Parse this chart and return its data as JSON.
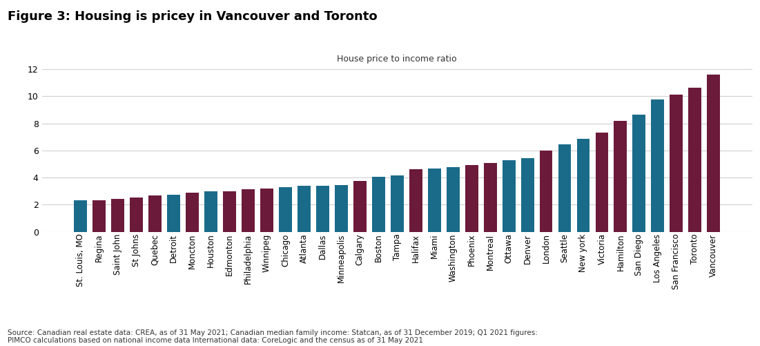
{
  "title": "Figure 3: Housing is pricey in Vancouver and Toronto",
  "subtitle": "House price to income ratio",
  "footnote": "Source: Canadian real estate data: CREA, as of 31 May 2021; Canadian median family income: Statcan, as of 31 December 2019; Q1 2021 figures:\nPIMCO calculations based on national income data International data: CoreLogic and the census as of 31 May 2021",
  "categories": [
    "St. Louis, MO",
    "Regina",
    "Saint John",
    "St Johns",
    "Quebec",
    "Detroit",
    "Moncton",
    "Houston",
    "Edmonton",
    "Philadelphia",
    "Winnipeg",
    "Chicago",
    "Atlanta",
    "Dallas",
    "Minneapolis",
    "Calgary",
    "Boston",
    "Tampa",
    "Halifax",
    "Miami",
    "Washington",
    "Phoenix",
    "Montreal",
    "Ottawa",
    "Denver",
    "London",
    "Seattle",
    "New york",
    "Victoria",
    "Hamilton",
    "San Diego",
    "Los Angeles",
    "San Francisco",
    "Toronto",
    "Vancouver"
  ],
  "values": [
    2.35,
    2.35,
    2.45,
    2.55,
    2.7,
    2.75,
    2.9,
    3.0,
    3.0,
    3.15,
    3.2,
    3.3,
    3.4,
    3.4,
    3.45,
    3.75,
    4.05,
    4.15,
    4.6,
    4.65,
    4.75,
    4.95,
    5.1,
    5.3,
    5.45,
    6.0,
    6.45,
    6.85,
    7.3,
    8.2,
    8.65,
    9.75,
    10.1,
    10.65,
    11.6
  ],
  "bar_colors": [
    "#1a6b8a",
    "#6b1a3a",
    "#6b1a3a",
    "#6b1a3a",
    "#6b1a3a",
    "#1a6b8a",
    "#6b1a3a",
    "#1a6b8a",
    "#6b1a3a",
    "#6b1a3a",
    "#6b1a3a",
    "#1a6b8a",
    "#1a6b8a",
    "#1a6b8a",
    "#1a6b8a",
    "#6b1a3a",
    "#1a6b8a",
    "#1a6b8a",
    "#6b1a3a",
    "#1a6b8a",
    "#1a6b8a",
    "#6b1a3a",
    "#6b1a3a",
    "#1a6b8a",
    "#1a6b8a",
    "#6b1a3a",
    "#1a6b8a",
    "#1a6b8a",
    "#6b1a3a",
    "#6b1a3a",
    "#1a6b8a",
    "#1a6b8a",
    "#6b1a3a",
    "#6b1a3a",
    "#6b1a3a"
  ],
  "teal": "#1a6b8a",
  "maroon": "#6b1a3a",
  "ylim": [
    0,
    12
  ],
  "yticks": [
    0,
    2,
    4,
    6,
    8,
    10,
    12
  ],
  "background_color": "#ffffff",
  "grid_color": "#d0d0d0",
  "title_fontsize": 13,
  "subtitle_fontsize": 9,
  "footnote_fontsize": 7.5,
  "tick_fontsize": 8.5,
  "ytick_fontsize": 9
}
